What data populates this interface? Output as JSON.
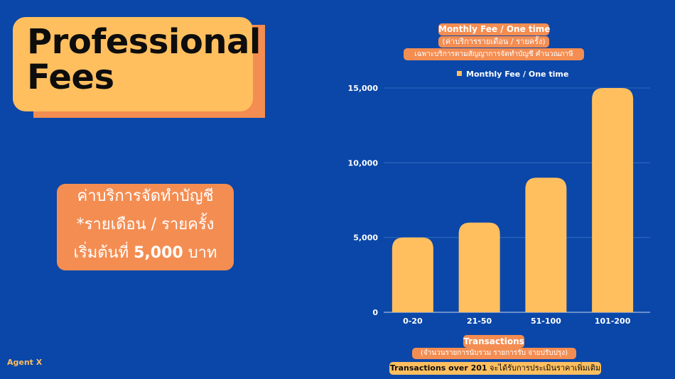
{
  "title": {
    "line1": "Professional",
    "line2": "Fees"
  },
  "pricing": {
    "line1": "ค่าบริการจัดทำบัญชี",
    "line2": "*รายเดือน / รายครั้ง",
    "line3_prefix": "เริ่มต้นที่ ",
    "line3_amount": "5,000",
    "line3_suffix": " บาท"
  },
  "chart_header": {
    "title": "Monthly Fee / One time",
    "subtitle": "(ค่าบริการรายเดือน / รายครั้ง)",
    "note": "เฉพาะบริการตามสัญญาการจัดทำบัญชี คำนวณภาษี"
  },
  "chart_footer": {
    "xlabel": "Transactions",
    "xlabel_sub": "(จำนวนรายการนับรวม รายการรับ จ่ายปรับปรุง)",
    "note_bold": "Transactions over 201",
    "note_rest": " จะได้รับการประเมินราคาเพิ่มเติม"
  },
  "footer": {
    "brand": "Agent X"
  },
  "colors": {
    "background": "#0a47a8",
    "accent": "#ffbf5f",
    "orange": "#f48d52"
  },
  "chart_data": {
    "type": "bar",
    "categories": [
      "0-20",
      "21-50",
      "51-100",
      "101-200"
    ],
    "series": [
      {
        "name": "Monthly Fee / One time",
        "values": [
          5000,
          6000,
          9000,
          15000
        ]
      }
    ],
    "ylim": [
      0,
      15000
    ],
    "yticks": [
      0,
      5000,
      10000,
      15000
    ],
    "ytick_labels": [
      "0",
      "5,000",
      "10,000",
      "15,000"
    ],
    "grid": true,
    "legend_position": "top"
  }
}
